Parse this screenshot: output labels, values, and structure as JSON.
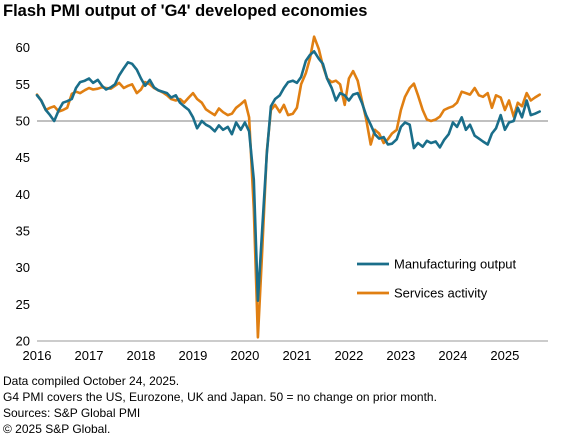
{
  "title": "Flash PMI output of 'G4' developed economies",
  "footnotes": [
    "Data compiled October 24,  2025.",
    "G4 PMI covers the US, Eurozone, UK and Japan. 50 = no change on prior month.",
    "Sources: S&P Global PMI",
    "© 2025 S&P Global."
  ],
  "chart_data": {
    "type": "line",
    "title": "Flash PMI output of 'G4' developed economies",
    "xlabel": "",
    "ylabel": "",
    "xlim": [
      2016.0,
      2025.83
    ],
    "ylim": [
      20,
      62
    ],
    "x_ticks": [
      "2016",
      "2017",
      "2018",
      "2019",
      "2020",
      "2021",
      "2022",
      "2023",
      "2024",
      "2025"
    ],
    "y_ticks": [
      20,
      25,
      30,
      35,
      40,
      45,
      50,
      55,
      60
    ],
    "reference_line": 50,
    "grid": false,
    "legend_position": "bottom-right",
    "series": [
      {
        "name": "Manufacturing output",
        "color": "#1a6e8a",
        "points": [
          [
            2016.0,
            53.5
          ],
          [
            2016.08,
            52.8
          ],
          [
            2016.17,
            51.5
          ],
          [
            2016.25,
            50.8
          ],
          [
            2016.33,
            50.0
          ],
          [
            2016.42,
            51.5
          ],
          [
            2016.5,
            52.5
          ],
          [
            2016.58,
            52.7
          ],
          [
            2016.67,
            53.0
          ],
          [
            2016.75,
            54.5
          ],
          [
            2016.83,
            55.3
          ],
          [
            2016.92,
            55.5
          ],
          [
            2017.0,
            55.8
          ],
          [
            2017.08,
            55.2
          ],
          [
            2017.17,
            55.6
          ],
          [
            2017.25,
            54.8
          ],
          [
            2017.33,
            54.3
          ],
          [
            2017.42,
            54.6
          ],
          [
            2017.5,
            55.0
          ],
          [
            2017.58,
            56.2
          ],
          [
            2017.67,
            57.2
          ],
          [
            2017.75,
            58.0
          ],
          [
            2017.83,
            57.8
          ],
          [
            2017.92,
            57.0
          ],
          [
            2018.0,
            55.8
          ],
          [
            2018.08,
            54.8
          ],
          [
            2018.17,
            55.6
          ],
          [
            2018.25,
            54.6
          ],
          [
            2018.33,
            54.2
          ],
          [
            2018.42,
            54.0
          ],
          [
            2018.5,
            53.8
          ],
          [
            2018.58,
            53.2
          ],
          [
            2018.67,
            53.5
          ],
          [
            2018.75,
            52.5
          ],
          [
            2018.83,
            52.0
          ],
          [
            2018.92,
            51.5
          ],
          [
            2019.0,
            50.5
          ],
          [
            2019.08,
            49.0
          ],
          [
            2019.17,
            50.0
          ],
          [
            2019.25,
            49.5
          ],
          [
            2019.33,
            49.2
          ],
          [
            2019.42,
            48.6
          ],
          [
            2019.5,
            49.4
          ],
          [
            2019.58,
            48.8
          ],
          [
            2019.67,
            49.2
          ],
          [
            2019.75,
            48.2
          ],
          [
            2019.83,
            49.8
          ],
          [
            2019.92,
            48.8
          ],
          [
            2020.0,
            49.8
          ],
          [
            2020.08,
            48.6
          ],
          [
            2020.17,
            42.0
          ],
          [
            2020.25,
            25.5
          ],
          [
            2020.33,
            35.0
          ],
          [
            2020.42,
            45.5
          ],
          [
            2020.5,
            52.0
          ],
          [
            2020.58,
            53.0
          ],
          [
            2020.67,
            53.5
          ],
          [
            2020.75,
            54.5
          ],
          [
            2020.83,
            55.3
          ],
          [
            2020.92,
            55.5
          ],
          [
            2021.0,
            55.2
          ],
          [
            2021.08,
            56.0
          ],
          [
            2021.17,
            58.2
          ],
          [
            2021.25,
            59.0
          ],
          [
            2021.33,
            59.5
          ],
          [
            2021.42,
            58.5
          ],
          [
            2021.5,
            57.8
          ],
          [
            2021.58,
            55.8
          ],
          [
            2021.67,
            54.5
          ],
          [
            2021.75,
            52.8
          ],
          [
            2021.83,
            53.8
          ],
          [
            2021.92,
            53.5
          ],
          [
            2022.0,
            52.8
          ],
          [
            2022.08,
            53.6
          ],
          [
            2022.17,
            53.8
          ],
          [
            2022.25,
            52.5
          ],
          [
            2022.33,
            50.8
          ],
          [
            2022.42,
            49.5
          ],
          [
            2022.5,
            48.2
          ],
          [
            2022.58,
            47.6
          ],
          [
            2022.67,
            47.8
          ],
          [
            2022.75,
            46.8
          ],
          [
            2022.83,
            46.9
          ],
          [
            2022.92,
            47.5
          ],
          [
            2023.0,
            49.2
          ],
          [
            2023.08,
            49.8
          ],
          [
            2023.17,
            49.5
          ],
          [
            2023.25,
            46.3
          ],
          [
            2023.33,
            47.0
          ],
          [
            2023.42,
            46.5
          ],
          [
            2023.5,
            47.3
          ],
          [
            2023.58,
            47.0
          ],
          [
            2023.67,
            47.2
          ],
          [
            2023.75,
            46.4
          ],
          [
            2023.83,
            47.4
          ],
          [
            2023.92,
            48.2
          ],
          [
            2024.0,
            49.8
          ],
          [
            2024.08,
            49.2
          ],
          [
            2024.17,
            50.5
          ],
          [
            2024.25,
            48.8
          ],
          [
            2024.33,
            49.5
          ],
          [
            2024.42,
            48.0
          ],
          [
            2024.5,
            47.6
          ],
          [
            2024.58,
            47.2
          ],
          [
            2024.67,
            46.8
          ],
          [
            2024.75,
            48.3
          ],
          [
            2024.83,
            49.0
          ],
          [
            2024.92,
            50.8
          ],
          [
            2025.0,
            48.8
          ],
          [
            2025.08,
            49.8
          ],
          [
            2025.17,
            50.0
          ],
          [
            2025.25,
            51.8
          ],
          [
            2025.33,
            50.5
          ],
          [
            2025.42,
            52.8
          ],
          [
            2025.5,
            50.8
          ],
          [
            2025.58,
            51.0
          ],
          [
            2025.67,
            51.3
          ]
        ]
      },
      {
        "name": "Services activity",
        "color": "#e07f12",
        "points": [
          [
            2016.0,
            53.6
          ],
          [
            2016.08,
            52.8
          ],
          [
            2016.17,
            51.5
          ],
          [
            2016.25,
            51.8
          ],
          [
            2016.33,
            52.0
          ],
          [
            2016.42,
            51.3
          ],
          [
            2016.5,
            51.5
          ],
          [
            2016.58,
            51.8
          ],
          [
            2016.67,
            53.7
          ],
          [
            2016.75,
            54.0
          ],
          [
            2016.83,
            53.8
          ],
          [
            2016.92,
            54.2
          ],
          [
            2017.0,
            54.5
          ],
          [
            2017.08,
            54.3
          ],
          [
            2017.17,
            54.4
          ],
          [
            2017.25,
            54.6
          ],
          [
            2017.33,
            54.5
          ],
          [
            2017.42,
            54.4
          ],
          [
            2017.5,
            54.8
          ],
          [
            2017.58,
            55.2
          ],
          [
            2017.67,
            54.5
          ],
          [
            2017.75,
            54.8
          ],
          [
            2017.83,
            55.0
          ],
          [
            2017.92,
            53.8
          ],
          [
            2018.0,
            54.3
          ],
          [
            2018.08,
            55.3
          ],
          [
            2018.17,
            55.0
          ],
          [
            2018.25,
            54.5
          ],
          [
            2018.33,
            54.2
          ],
          [
            2018.42,
            53.9
          ],
          [
            2018.5,
            53.5
          ],
          [
            2018.58,
            53.0
          ],
          [
            2018.67,
            52.8
          ],
          [
            2018.75,
            53.0
          ],
          [
            2018.83,
            52.5
          ],
          [
            2018.92,
            53.2
          ],
          [
            2019.0,
            53.8
          ],
          [
            2019.08,
            53.0
          ],
          [
            2019.17,
            52.5
          ],
          [
            2019.25,
            51.6
          ],
          [
            2019.33,
            51.2
          ],
          [
            2019.42,
            50.8
          ],
          [
            2019.5,
            51.7
          ],
          [
            2019.58,
            51.2
          ],
          [
            2019.67,
            50.8
          ],
          [
            2019.75,
            51.0
          ],
          [
            2019.83,
            51.8
          ],
          [
            2019.92,
            52.3
          ],
          [
            2020.0,
            52.8
          ],
          [
            2020.08,
            50.5
          ],
          [
            2020.17,
            38.0
          ],
          [
            2020.25,
            20.5
          ],
          [
            2020.33,
            32.0
          ],
          [
            2020.42,
            45.8
          ],
          [
            2020.5,
            51.5
          ],
          [
            2020.58,
            52.2
          ],
          [
            2020.67,
            51.2
          ],
          [
            2020.75,
            52.2
          ],
          [
            2020.83,
            50.8
          ],
          [
            2020.92,
            51.0
          ],
          [
            2021.0,
            51.8
          ],
          [
            2021.08,
            55.0
          ],
          [
            2021.17,
            56.5
          ],
          [
            2021.25,
            58.5
          ],
          [
            2021.33,
            61.5
          ],
          [
            2021.42,
            59.8
          ],
          [
            2021.5,
            57.5
          ],
          [
            2021.58,
            55.8
          ],
          [
            2021.67,
            55.3
          ],
          [
            2021.75,
            55.5
          ],
          [
            2021.83,
            55.0
          ],
          [
            2021.92,
            52.2
          ],
          [
            2022.0,
            55.8
          ],
          [
            2022.08,
            56.8
          ],
          [
            2022.17,
            55.5
          ],
          [
            2022.25,
            52.8
          ],
          [
            2022.33,
            50.3
          ],
          [
            2022.42,
            46.8
          ],
          [
            2022.5,
            48.8
          ],
          [
            2022.58,
            48.3
          ],
          [
            2022.67,
            47.0
          ],
          [
            2022.75,
            47.5
          ],
          [
            2022.83,
            48.3
          ],
          [
            2022.92,
            48.8
          ],
          [
            2023.0,
            51.5
          ],
          [
            2023.08,
            53.3
          ],
          [
            2023.17,
            54.5
          ],
          [
            2023.25,
            55.1
          ],
          [
            2023.33,
            53.5
          ],
          [
            2023.42,
            51.5
          ],
          [
            2023.5,
            50.2
          ],
          [
            2023.58,
            50.0
          ],
          [
            2023.67,
            50.2
          ],
          [
            2023.75,
            50.6
          ],
          [
            2023.83,
            51.5
          ],
          [
            2023.92,
            51.8
          ],
          [
            2024.0,
            52.0
          ],
          [
            2024.08,
            52.5
          ],
          [
            2024.17,
            54.0
          ],
          [
            2024.25,
            53.8
          ],
          [
            2024.33,
            53.6
          ],
          [
            2024.42,
            54.5
          ],
          [
            2024.5,
            53.5
          ],
          [
            2024.58,
            53.3
          ],
          [
            2024.67,
            53.8
          ],
          [
            2024.75,
            51.8
          ],
          [
            2024.83,
            53.5
          ],
          [
            2024.92,
            53.2
          ],
          [
            2025.0,
            51.5
          ],
          [
            2025.08,
            52.8
          ],
          [
            2025.17,
            50.6
          ],
          [
            2025.25,
            52.5
          ],
          [
            2025.33,
            52.0
          ],
          [
            2025.42,
            53.8
          ],
          [
            2025.5,
            52.8
          ],
          [
            2025.58,
            53.2
          ],
          [
            2025.67,
            53.6
          ]
        ]
      }
    ]
  }
}
